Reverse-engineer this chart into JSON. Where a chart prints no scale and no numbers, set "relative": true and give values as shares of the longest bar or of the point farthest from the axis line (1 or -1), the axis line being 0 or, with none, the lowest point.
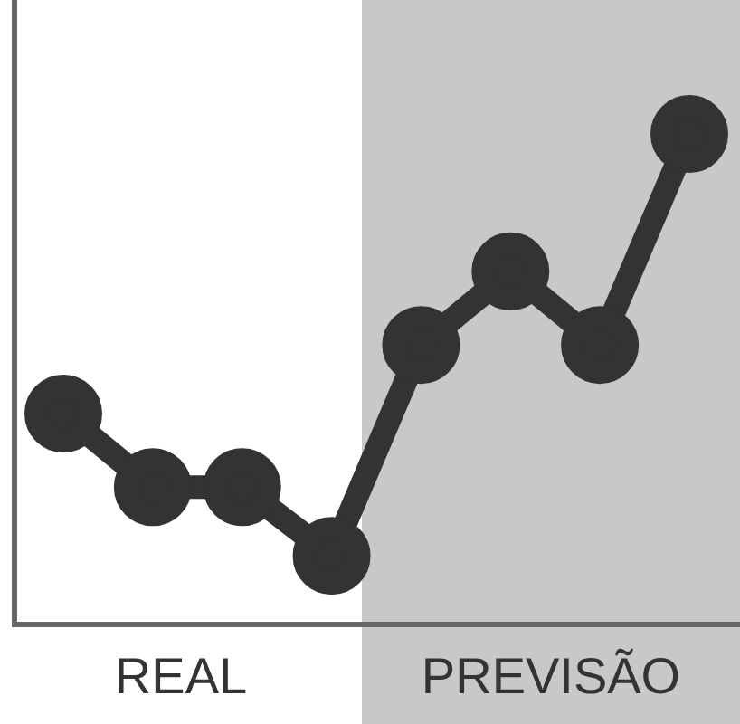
{
  "chart_data": {
    "type": "line",
    "relative": true,
    "categories": [
      null,
      null,
      null,
      null,
      null,
      null,
      null,
      null
    ],
    "series": [
      {
        "color": "#333333",
        "values": [
          0.43,
          0.28,
          0.28,
          0.14,
          0.57,
          0.72,
          0.57,
          1
        ]
      }
    ],
    "annotations": [
      "REAL",
      "PREVISÃO"
    ],
    "marker": "circle",
    "line_style": "solid",
    "legend": false
  }
}
